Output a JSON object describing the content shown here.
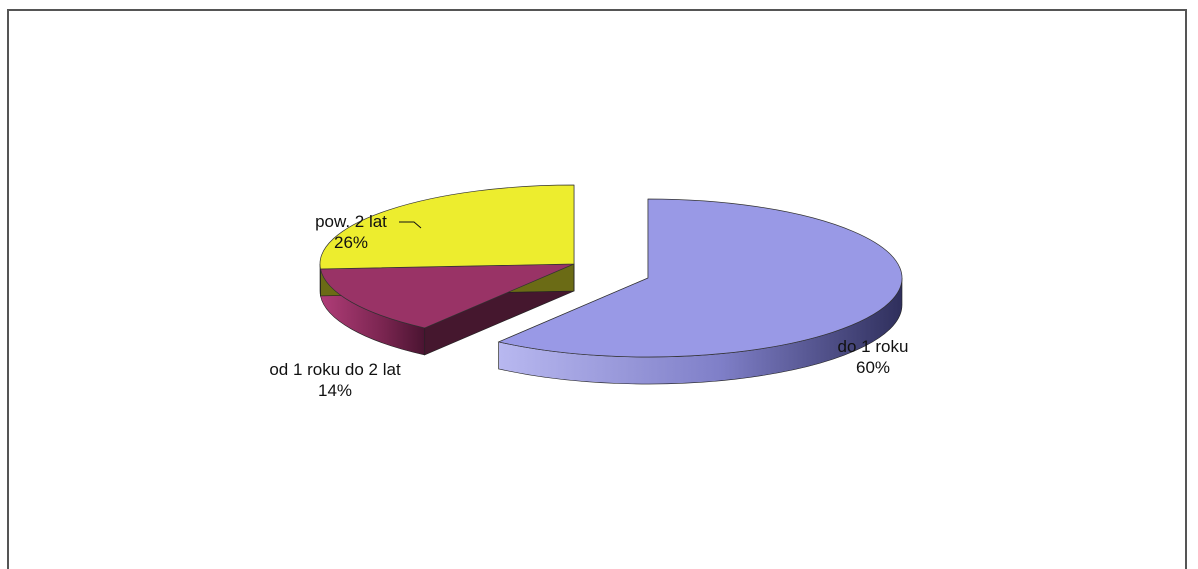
{
  "chart_data": {
    "type": "pie",
    "title": "",
    "slices": [
      {
        "label": "do 1 roku",
        "value": 60,
        "value_label": "60%",
        "color": "#9999e6",
        "exploded": true
      },
      {
        "label": "od 1 roku do 2 lat",
        "value": 14,
        "value_label": "14%",
        "color": "#993366",
        "exploded": false
      },
      {
        "label": "pow. 2 lat",
        "value": 26,
        "value_label": "26%",
        "color": "#eded2e",
        "exploded": false
      }
    ],
    "legend": "none",
    "three_d": true
  }
}
